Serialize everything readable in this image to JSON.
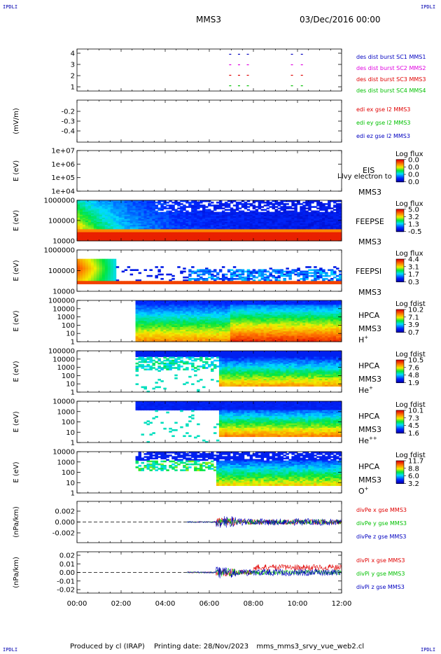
{
  "header": {
    "corner_label": "IPDLI",
    "spacecraft": "MMS3",
    "date": "03/Dec/2016 00:00"
  },
  "footer": {
    "produced_by": "Produced by cl (IRAP)",
    "printing_date": "Printing date: 28/Nov/2023",
    "file_name": "mms_mms3_srvy_vue_web2.cl"
  },
  "colors": {
    "red": "#e00000",
    "green": "#00c000",
    "blue": "#0000c0",
    "magenta": "#e000e0"
  },
  "time_axis": {
    "ticks": [
      "00:00",
      "02:00",
      "04:00",
      "06:00",
      "08:00",
      "10:00",
      "12:00"
    ],
    "range_hours": [
      0,
      12
    ]
  },
  "chart_data": [
    {
      "id": "availability",
      "type": "scatter",
      "yticks": [
        "4",
        "3",
        "2",
        "1"
      ],
      "ylim": [
        0.5,
        4.5
      ],
      "series": [
        {
          "name": "des dist burst SC1 MMS1",
          "level": 4,
          "color": "#0000c0"
        },
        {
          "name": "des dist burst SC2 MMS2",
          "level": 3,
          "color": "#e000e0"
        },
        {
          "name": "des dist burst SC3 MMS3",
          "level": 2,
          "color": "#e00000"
        },
        {
          "name": "des dist burst SC4 MMS4",
          "level": 1,
          "color": "#00c000"
        }
      ],
      "segments_hours": [
        [
          6.9,
          7.05
        ],
        [
          7.3,
          7.45
        ],
        [
          7.7,
          7.85
        ],
        [
          9.7,
          9.8
        ],
        [
          10.15,
          10.25
        ]
      ]
    },
    {
      "id": "edi",
      "type": "line",
      "ylabel": "(mV/m)",
      "yticks": [
        "-0.2",
        "-0.3",
        "-0.4"
      ],
      "ylim": [
        -0.45,
        -0.1
      ],
      "series": [
        {
          "name": "edi ex gse l2 MMS3",
          "color": "#e00000"
        },
        {
          "name": "edi ey gse l2 MMS3",
          "color": "#00c000"
        },
        {
          "name": "edi ez gse l2 MMS3",
          "color": "#0000c0"
        }
      ]
    },
    {
      "id": "eis",
      "type": "heatmap",
      "ylabel": "E (eV)",
      "yticks": [
        "1e+07",
        "1e+06",
        "1e+05",
        "1e+04"
      ],
      "instrument": "EIS",
      "instrument_extra": "l lvy electron to",
      "spacecraft": "MMS3",
      "colorbar_title": "Log flux",
      "colorbar_ticks": [
        "0.0",
        "0.0",
        "0.0",
        "0.0"
      ]
    },
    {
      "id": "feeps-e",
      "type": "heatmap",
      "ylabel": "E (eV)",
      "yticks": [
        "1000000",
        "100000",
        "10000"
      ],
      "instrument": "FEEPSE",
      "spacecraft": "MMS3",
      "colorbar_title": "Log flux",
      "colorbar_ticks": [
        "5.0",
        "3.2",
        "1.3",
        "-0.5"
      ]
    },
    {
      "id": "feeps-i",
      "type": "heatmap",
      "ylabel": "E (eV)",
      "yticks": [
        "1000000",
        "100000",
        "10000"
      ],
      "instrument": "FEEPSI",
      "spacecraft": "MMS3",
      "colorbar_title": "Log flux",
      "colorbar_ticks": [
        "4.4",
        "3.1",
        "1.7",
        "0.3"
      ]
    },
    {
      "id": "hpca-h",
      "type": "heatmap",
      "ylabel": "E (eV)",
      "yticks": [
        "100000",
        "10000",
        "1000",
        "100",
        "10",
        "1"
      ],
      "instrument": "HPCA",
      "spacecraft": "MMS3",
      "species": "H",
      "species_charge": "+",
      "colorbar_title": "Log fdist",
      "colorbar_ticks": [
        "10.2",
        "7.1",
        "3.9",
        "0.7"
      ]
    },
    {
      "id": "hpca-he",
      "type": "heatmap",
      "ylabel": "E (eV)",
      "yticks": [
        "100000",
        "10000",
        "1000",
        "100",
        "10",
        "1"
      ],
      "instrument": "HPCA",
      "spacecraft": "MMS3",
      "species": "He",
      "species_charge": "+",
      "colorbar_title": "Log fdist",
      "colorbar_ticks": [
        "10.5",
        "7.6",
        "4.8",
        "1.9"
      ]
    },
    {
      "id": "hpca-he2",
      "type": "heatmap",
      "ylabel": "E (eV)",
      "yticks": [
        "10000",
        "1000",
        "100",
        "10",
        "1"
      ],
      "instrument": "HPCA",
      "spacecraft": "MMS3",
      "species": "He",
      "species_charge": "++",
      "colorbar_title": "Log fdist",
      "colorbar_ticks": [
        "10.1",
        "7.3",
        "4.5",
        "1.6"
      ]
    },
    {
      "id": "hpca-o",
      "type": "heatmap",
      "ylabel": "E (eV)",
      "yticks": [
        "10000",
        "1000",
        "100",
        "10",
        "1"
      ],
      "instrument": "HPCA",
      "spacecraft": "MMS3",
      "species": "O",
      "species_charge": "+",
      "colorbar_title": "Log fdist",
      "colorbar_ticks": [
        "11.7",
        "8.8",
        "6.0",
        "3.2"
      ]
    },
    {
      "id": "divpe",
      "type": "line",
      "ylabel": "(nPa/km)",
      "yticks": [
        "0.002",
        "0.000",
        "-0.002"
      ],
      "ylim": [
        -0.0035,
        0.0035
      ],
      "series": [
        {
          "name": "divPe x gse MMS3",
          "color": "#e00000"
        },
        {
          "name": "divPe y gse MMS3",
          "color": "#00c000"
        },
        {
          "name": "divPe z gse MMS3",
          "color": "#0000c0"
        }
      ]
    },
    {
      "id": "divpi",
      "type": "line",
      "ylabel": "(nPa/km)",
      "yticks": [
        "0.02",
        "0.01",
        "0.00",
        "-0.01",
        "-0.02"
      ],
      "ylim": [
        -0.025,
        0.025
      ],
      "series": [
        {
          "name": "divPi x gse MMS3",
          "color": "#e00000"
        },
        {
          "name": "divPi y gse MMS3",
          "color": "#00c000"
        },
        {
          "name": "divPi z gse MMS3",
          "color": "#0000c0"
        }
      ]
    }
  ]
}
